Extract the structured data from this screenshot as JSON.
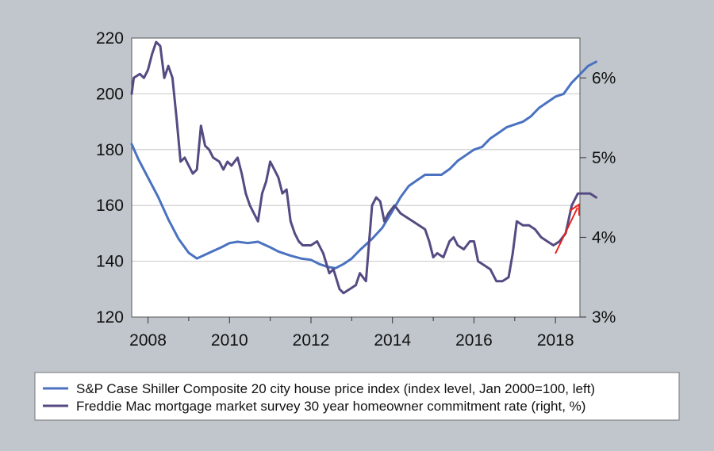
{
  "chart_data": {
    "type": "line",
    "title": "",
    "x_axis": {
      "range": [
        2007.6,
        2018.6
      ],
      "tick_values": [
        2008,
        2010,
        2012,
        2014,
        2016,
        2018
      ],
      "tick_labels": [
        "2008",
        "2010",
        "2012",
        "2014",
        "2016",
        "2018"
      ]
    },
    "y_left": {
      "range": [
        120,
        220
      ],
      "ticks": [
        120,
        140,
        160,
        180,
        200,
        220
      ],
      "tick_labels": [
        "120",
        "140",
        "160",
        "180",
        "200",
        "220"
      ],
      "grid": true
    },
    "y_right": {
      "range": [
        3.0,
        6.5
      ],
      "ticks": [
        3,
        4,
        5,
        6
      ],
      "tick_labels": [
        "3%",
        "4%",
        "5%",
        "6%"
      ]
    },
    "legend": {
      "placement": "bottom"
    },
    "series": [
      {
        "name": "S&P Case Shiller Composite 20 city house price index (index level, Jan 2000=100, left)",
        "axis": "left",
        "color": "#4a72c0",
        "points": [
          [
            2007.6,
            182
          ],
          [
            2007.75,
            177
          ],
          [
            2008.0,
            170
          ],
          [
            2008.25,
            163
          ],
          [
            2008.5,
            155
          ],
          [
            2008.75,
            148
          ],
          [
            2009.0,
            143
          ],
          [
            2009.2,
            141
          ],
          [
            2009.5,
            143
          ],
          [
            2009.8,
            145
          ],
          [
            2010.0,
            146.5
          ],
          [
            2010.2,
            147
          ],
          [
            2010.45,
            146.5
          ],
          [
            2010.7,
            147
          ],
          [
            2011.0,
            145
          ],
          [
            2011.2,
            143.5
          ],
          [
            2011.5,
            142
          ],
          [
            2011.75,
            141
          ],
          [
            2012.0,
            140.5
          ],
          [
            2012.2,
            139
          ],
          [
            2012.4,
            138
          ],
          [
            2012.6,
            137.5
          ],
          [
            2012.8,
            139
          ],
          [
            2013.0,
            141
          ],
          [
            2013.2,
            144
          ],
          [
            2013.5,
            148
          ],
          [
            2013.75,
            152
          ],
          [
            2014.0,
            158
          ],
          [
            2014.2,
            163
          ],
          [
            2014.4,
            167
          ],
          [
            2014.6,
            169
          ],
          [
            2014.8,
            171
          ],
          [
            2015.0,
            171
          ],
          [
            2015.2,
            171
          ],
          [
            2015.4,
            173
          ],
          [
            2015.6,
            176
          ],
          [
            2015.8,
            178
          ],
          [
            2016.0,
            180
          ],
          [
            2016.2,
            181
          ],
          [
            2016.4,
            184
          ],
          [
            2016.6,
            186
          ],
          [
            2016.8,
            188
          ],
          [
            2017.0,
            189
          ],
          [
            2017.2,
            190
          ],
          [
            2017.4,
            192
          ],
          [
            2017.6,
            195
          ],
          [
            2017.8,
            197
          ],
          [
            2018.0,
            199
          ],
          [
            2018.2,
            200
          ],
          [
            2018.4,
            204
          ],
          [
            2018.6,
            207
          ],
          [
            2018.8,
            210
          ],
          [
            2019.0,
            211.5
          ]
        ]
      },
      {
        "name": "Freddie Mac mortgage market survey 30 year homeowner commitment rate (right, %)",
        "axis": "right",
        "color": "#554a82",
        "points": [
          [
            2007.6,
            5.8
          ],
          [
            2007.65,
            6.0
          ],
          [
            2007.8,
            6.05
          ],
          [
            2007.9,
            6.0
          ],
          [
            2008.0,
            6.1
          ],
          [
            2008.1,
            6.3
          ],
          [
            2008.2,
            6.45
          ],
          [
            2008.3,
            6.4
          ],
          [
            2008.4,
            6.0
          ],
          [
            2008.5,
            6.15
          ],
          [
            2008.6,
            6.0
          ],
          [
            2008.7,
            5.5
          ],
          [
            2008.8,
            4.95
          ],
          [
            2008.9,
            5.0
          ],
          [
            2009.0,
            4.9
          ],
          [
            2009.1,
            4.8
          ],
          [
            2009.2,
            4.85
          ],
          [
            2009.3,
            5.4
          ],
          [
            2009.4,
            5.15
          ],
          [
            2009.5,
            5.1
          ],
          [
            2009.6,
            5.0
          ],
          [
            2009.75,
            4.95
          ],
          [
            2009.85,
            4.85
          ],
          [
            2009.95,
            4.95
          ],
          [
            2010.05,
            4.9
          ],
          [
            2010.2,
            5.0
          ],
          [
            2010.3,
            4.8
          ],
          [
            2010.4,
            4.55
          ],
          [
            2010.5,
            4.4
          ],
          [
            2010.6,
            4.3
          ],
          [
            2010.7,
            4.2
          ],
          [
            2010.8,
            4.55
          ],
          [
            2010.9,
            4.7
          ],
          [
            2011.0,
            4.95
          ],
          [
            2011.1,
            4.85
          ],
          [
            2011.2,
            4.75
          ],
          [
            2011.3,
            4.55
          ],
          [
            2011.4,
            4.6
          ],
          [
            2011.5,
            4.2
          ],
          [
            2011.6,
            4.05
          ],
          [
            2011.7,
            3.95
          ],
          [
            2011.8,
            3.9
          ],
          [
            2012.0,
            3.9
          ],
          [
            2012.15,
            3.95
          ],
          [
            2012.3,
            3.8
          ],
          [
            2012.45,
            3.55
          ],
          [
            2012.55,
            3.6
          ],
          [
            2012.7,
            3.35
          ],
          [
            2012.8,
            3.3
          ],
          [
            2012.95,
            3.35
          ],
          [
            2013.1,
            3.4
          ],
          [
            2013.2,
            3.55
          ],
          [
            2013.35,
            3.45
          ],
          [
            2013.5,
            4.4
          ],
          [
            2013.6,
            4.5
          ],
          [
            2013.7,
            4.45
          ],
          [
            2013.8,
            4.2
          ],
          [
            2013.9,
            4.3
          ],
          [
            2014.05,
            4.4
          ],
          [
            2014.2,
            4.3
          ],
          [
            2014.35,
            4.25
          ],
          [
            2014.5,
            4.2
          ],
          [
            2014.65,
            4.15
          ],
          [
            2014.8,
            4.1
          ],
          [
            2014.9,
            3.95
          ],
          [
            2015.0,
            3.75
          ],
          [
            2015.1,
            3.8
          ],
          [
            2015.25,
            3.75
          ],
          [
            2015.4,
            3.95
          ],
          [
            2015.5,
            4.0
          ],
          [
            2015.6,
            3.9
          ],
          [
            2015.75,
            3.85
          ],
          [
            2015.9,
            3.95
          ],
          [
            2016.0,
            3.95
          ],
          [
            2016.1,
            3.7
          ],
          [
            2016.25,
            3.65
          ],
          [
            2016.4,
            3.6
          ],
          [
            2016.55,
            3.45
          ],
          [
            2016.7,
            3.45
          ],
          [
            2016.85,
            3.5
          ],
          [
            2016.95,
            3.8
          ],
          [
            2017.05,
            4.2
          ],
          [
            2017.2,
            4.15
          ],
          [
            2017.35,
            4.15
          ],
          [
            2017.5,
            4.1
          ],
          [
            2017.65,
            4.0
          ],
          [
            2017.8,
            3.95
          ],
          [
            2017.95,
            3.9
          ],
          [
            2018.1,
            3.95
          ],
          [
            2018.25,
            4.05
          ],
          [
            2018.4,
            4.4
          ],
          [
            2018.55,
            4.55
          ],
          [
            2018.7,
            4.55
          ],
          [
            2018.85,
            4.55
          ],
          [
            2019.0,
            4.5
          ]
        ]
      }
    ]
  }
}
